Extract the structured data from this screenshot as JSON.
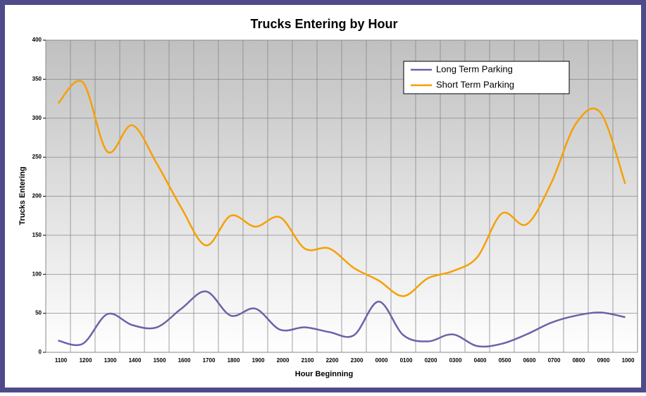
{
  "chart_data": {
    "type": "line",
    "title": "Trucks Entering by Hour",
    "x_label": "Hour Beginning",
    "y_label": "Trucks Entering",
    "categories": [
      "1100",
      "1200",
      "1300",
      "1400",
      "1500",
      "1600",
      "1700",
      "1800",
      "1900",
      "2000",
      "2100",
      "2200",
      "2300",
      "0000",
      "0100",
      "0200",
      "0300",
      "0400",
      "0500",
      "0600",
      "0700",
      "0800",
      "0900",
      "1000"
    ],
    "series": [
      {
        "name": "Long Term Parking",
        "color": "#6b63a8",
        "values": [
          15,
          11,
          49,
          35,
          32,
          56,
          78,
          47,
          56,
          29,
          32,
          26,
          22,
          65,
          22,
          14,
          23,
          8,
          11,
          23,
          38,
          47,
          51,
          45
        ]
      },
      {
        "name": "Short Term Parking",
        "color": "#f5a000",
        "values": [
          319,
          346,
          257,
          291,
          242,
          185,
          137,
          175,
          161,
          173,
          133,
          133,
          108,
          92,
          72,
          95,
          104,
          122,
          178,
          164,
          217,
          293,
          307,
          216
        ]
      }
    ],
    "ylim": [
      0,
      400
    ],
    "yticks": [
      0,
      50,
      100,
      150,
      200,
      250,
      300,
      350,
      400
    ],
    "grid": true,
    "legend": "top-right"
  }
}
